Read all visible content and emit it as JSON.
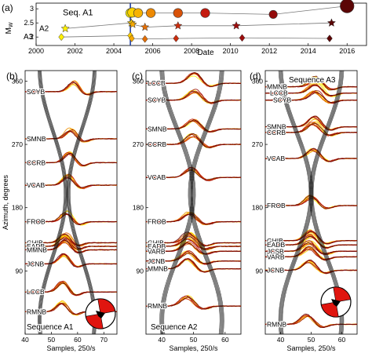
{
  "colors": {
    "early": "#fff000",
    "mid": "#f5a000",
    "late": "#c01010",
    "dark": "#300000",
    "black": "#000000",
    "blue": "#1f3fa0",
    "beach": "#e0150f"
  },
  "chart_data": [
    {
      "panel_label": "(a)",
      "type": "scatter",
      "xlabel": "Date",
      "ylabel": "M",
      "ylabel_sub": "W",
      "xlim": [
        2000,
        2017
      ],
      "ylim": [
        1.7,
        3.2
      ],
      "xticks": [
        "2000",
        "2002",
        "2004",
        "2006",
        "2008",
        "2010",
        "2012",
        "2014",
        "2016"
      ],
      "yticks": [
        "2",
        "2.5",
        "3"
      ],
      "marker_vline_x": 2004.85,
      "series": [
        {
          "name": "Seq. A1",
          "marker": "circle",
          "x": [
            2004.85,
            2004.95,
            2005.25,
            2005.9,
            2007.3,
            2008.7,
            2012.2,
            2016.0
          ],
          "y": [
            2.85,
            2.87,
            2.85,
            2.85,
            2.85,
            2.85,
            2.8,
            3.1
          ]
        },
        {
          "name": "A2",
          "marker": "star",
          "x": [
            2001.5,
            2004.9,
            2004.97,
            2005.6,
            2007.3,
            2010.3,
            2015.2
          ],
          "y": [
            2.3,
            2.5,
            2.45,
            2.35,
            2.4,
            2.4,
            2.5
          ]
        },
        {
          "name": "A3",
          "marker": "diamond",
          "x": [
            2001.3,
            2004.85,
            2004.92,
            2005.6,
            2007.2,
            2010.6,
            2015.1
          ],
          "y": [
            2.0,
            2.05,
            1.95,
            1.93,
            1.95,
            1.97,
            1.95
          ]
        }
      ]
    },
    {
      "panel_label": "(b)",
      "type": "line",
      "title": "Sequence A1",
      "xlabel": "Samples, 250/s",
      "ylabel": "Azimuth, degrees",
      "xlim": [
        40,
        75
      ],
      "ylim": [
        0,
        375
      ],
      "xticks": [
        "40",
        "50",
        "60",
        "70"
      ],
      "yticks": [
        "90",
        "180",
        "270",
        "360"
      ],
      "stations": [
        {
          "name": "SCYB",
          "az": 345
        },
        {
          "name": "SMNB",
          "az": 278
        },
        {
          "name": "CCRB",
          "az": 244
        },
        {
          "name": "VCAB",
          "az": 212
        },
        {
          "name": "FROB",
          "az": 160
        },
        {
          "name": "GHIB",
          "az": 130
        },
        {
          "name": "EADB",
          "az": 125
        },
        {
          "name": "MMNB",
          "az": 120
        },
        {
          "name": "JCNB",
          "az": 100
        },
        {
          "name": "LCCB",
          "az": 60
        },
        {
          "name": "RMNB",
          "az": 32
        }
      ]
    },
    {
      "panel_label": "(c)",
      "type": "line",
      "title": "Sequence A2",
      "xlabel": "Samples, 250/s",
      "ylabel": "",
      "xlim": [
        35,
        65
      ],
      "ylim": [
        0,
        375
      ],
      "xticks": [
        "40",
        "50",
        "60"
      ],
      "yticks": [
        "90",
        "180",
        "270",
        "360"
      ],
      "stations": [
        {
          "name": "LCCB",
          "az": 357
        },
        {
          "name": "SCYB",
          "az": 333
        },
        {
          "name": "SMNB",
          "az": 292
        },
        {
          "name": "CCRB",
          "az": 270
        },
        {
          "name": "VCAB",
          "az": 223
        },
        {
          "name": "FROB",
          "az": 160
        },
        {
          "name": "GHIB",
          "az": 130
        },
        {
          "name": "EADB",
          "az": 125
        },
        {
          "name": "VARB",
          "az": 118
        },
        {
          "name": "JCNB",
          "az": 104
        },
        {
          "name": "MMNB",
          "az": 93
        },
        {
          "name": "RMNB",
          "az": 40
        }
      ]
    },
    {
      "panel_label": "(d)",
      "type": "line",
      "title": "Sequence A3",
      "xlabel": "Samples, 250/s",
      "ylabel": "",
      "xlim": [
        35,
        65
      ],
      "ylim": [
        0,
        375
      ],
      "xticks": [
        "40",
        "50",
        "60"
      ],
      "yticks": [
        "90",
        "180",
        "270",
        "360"
      ],
      "stations": [
        {
          "name": "MMNB",
          "az": 352
        },
        {
          "name": "LCCB",
          "az": 343
        },
        {
          "name": "SCYB",
          "az": 333
        },
        {
          "name": "SMNB",
          "az": 295
        },
        {
          "name": "CCRB",
          "az": 287
        },
        {
          "name": "VCAB",
          "az": 250
        },
        {
          "name": "FROB",
          "az": 183
        },
        {
          "name": "GHIB",
          "az": 133
        },
        {
          "name": "EADB",
          "az": 127
        },
        {
          "name": "JCSB",
          "az": 118
        },
        {
          "name": "VARB",
          "az": 110
        },
        {
          "name": "JCNB",
          "az": 91
        },
        {
          "name": "RMNB",
          "az": 14
        }
      ]
    }
  ]
}
